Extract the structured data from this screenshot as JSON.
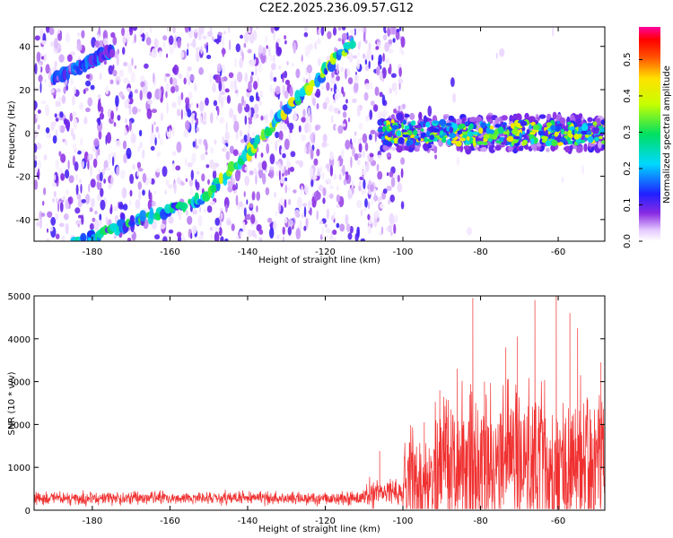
{
  "title": "C2E2.2025.236.09.57.G12",
  "chart_data": [
    {
      "type": "heatmap",
      "xlabel": "Height of straight line (km)",
      "ylabel": "Frequency (Hz)",
      "xlim": [
        -195,
        -48
      ],
      "ylim": [
        -50,
        49
      ],
      "xticks": [
        -180,
        -160,
        -140,
        -120,
        -100,
        -80,
        -60
      ],
      "yticks": [
        -40,
        -20,
        0,
        20,
        40
      ],
      "colorbar": {
        "label": "Normalized spectral amplitude",
        "range": [
          0.0,
          0.59
        ],
        "ticks": [
          0.0,
          0.1,
          0.2,
          0.3,
          0.4,
          0.5
        ],
        "tick_labels": [
          "0.0",
          "0.1",
          "0.2",
          "0.3",
          "0.4",
          "0.5"
        ],
        "colormap": "rainbow (white-violet-blue-cyan-green-yellow-red-magenta)"
      },
      "features": [
        {
          "kind": "diagonal-band",
          "from": [
            -196,
            -58
          ],
          "to": [
            -151,
            -30
          ],
          "amplitude": 0.25
        },
        {
          "kind": "diagonal-band",
          "from": [
            -151,
            -30
          ],
          "to": [
            -113,
            42
          ],
          "amplitude": 0.35
        },
        {
          "kind": "diagonal-band",
          "from": [
            -190,
            25
          ],
          "to": [
            -175,
            38
          ],
          "amplitude": 0.15
        },
        {
          "kind": "horizontal-band",
          "x_range": [
            -106,
            -48
          ],
          "center": 0,
          "halfwidth": 5,
          "amplitude": 0.3
        }
      ]
    },
    {
      "type": "line",
      "xlabel": "Height of straight line (km)",
      "ylabel": "SNR (10 * v/v)",
      "xlim": [
        -195,
        -48
      ],
      "ylim": [
        0,
        5000
      ],
      "xticks": [
        -180,
        -160,
        -140,
        -120,
        -100,
        -80,
        -60
      ],
      "yticks": [
        0,
        1000,
        2000,
        3000,
        4000,
        5000
      ],
      "color": "#f03030",
      "segments": [
        {
          "x": [
            -195,
            -110
          ],
          "base": 280,
          "spread": 200
        },
        {
          "x": [
            -110,
            -100
          ],
          "base": 400,
          "spread": 450
        },
        {
          "x": [
            -100,
            -92
          ],
          "base": 650,
          "spread": 1400
        },
        {
          "x": [
            -92,
            -48
          ],
          "base": 1000,
          "spread": 2300
        }
      ],
      "spikes": [
        {
          "x": -106,
          "y": 1380
        },
        {
          "x": -94.5,
          "y": 2050
        },
        {
          "x": -90.5,
          "y": 2800
        },
        {
          "x": -86,
          "y": 3300
        },
        {
          "x": -82,
          "y": 4950
        },
        {
          "x": -79,
          "y": 3000
        },
        {
          "x": -73.5,
          "y": 3800
        },
        {
          "x": -70.5,
          "y": 4050
        },
        {
          "x": -66,
          "y": 4900
        },
        {
          "x": -60.5,
          "y": 5000
        },
        {
          "x": -57,
          "y": 4600
        },
        {
          "x": -55,
          "y": 4250
        },
        {
          "x": -49,
          "y": 3450
        }
      ]
    }
  ]
}
